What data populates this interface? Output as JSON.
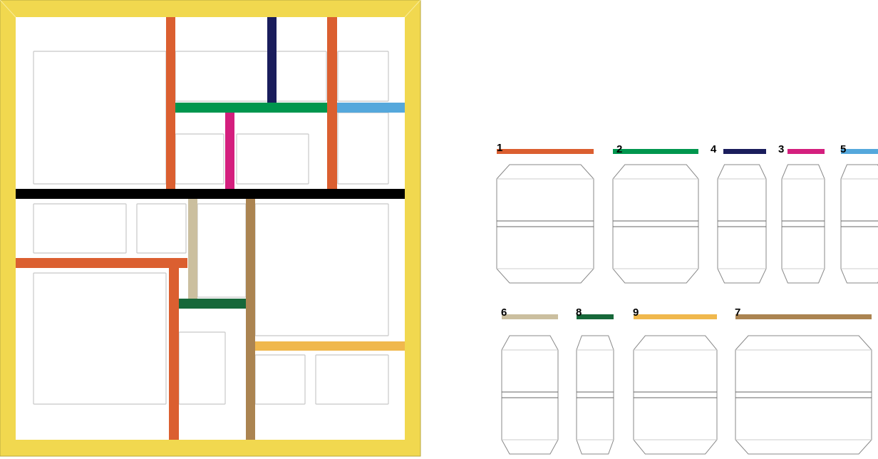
{
  "colors": {
    "frame": "#f1d84f",
    "orange": "#db5f30",
    "navy": "#1a1d5c",
    "green": "#00964e",
    "blue": "#55a8dc",
    "magenta": "#d41f7e",
    "black": "#000000",
    "tan": "#cbbf9f",
    "brown": "#ab8451",
    "dark_green": "#17683a",
    "yellow": "#f0b84d",
    "outline": "#c8c8c8"
  },
  "pieces": [
    {
      "label": "1",
      "color": "#db5f30"
    },
    {
      "label": "2",
      "color": "#00964e"
    },
    {
      "label": "4",
      "color": "#1a1d5c"
    },
    {
      "label": "3",
      "color": "#d41f7e"
    },
    {
      "label": "5",
      "color": "#55a8dc"
    },
    {
      "label": "6",
      "color": "#cbbf9f"
    },
    {
      "label": "8",
      "color": "#17683a"
    },
    {
      "label": "9",
      "color": "#f0b84d"
    },
    {
      "label": "7",
      "color": "#ab8451"
    }
  ]
}
